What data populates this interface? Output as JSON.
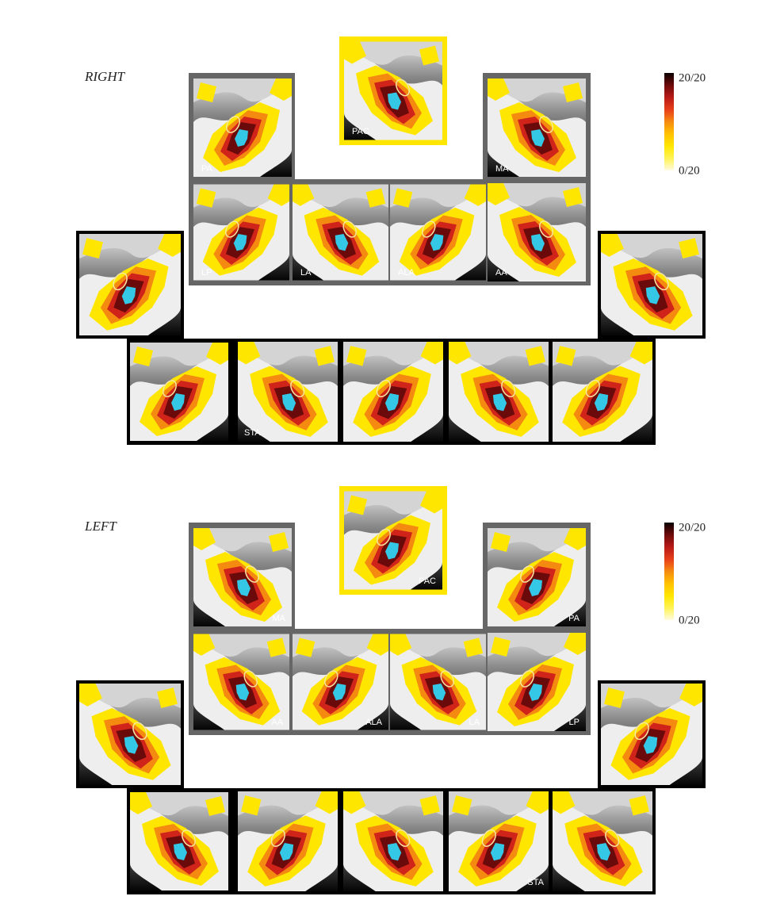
{
  "sections": [
    {
      "label": "RIGHT",
      "colorbar": {
        "max_label": "20/20",
        "min_label": "0/20"
      },
      "panel_labels": [
        "PAC",
        "PA",
        "MA",
        "LP",
        "LA",
        "ALA",
        "AA",
        "STA"
      ]
    },
    {
      "label": "LEFT",
      "colorbar": {
        "max_label": "20/20",
        "min_label": "0/20"
      },
      "panel_labels": [
        "PAC",
        "MA",
        "PA",
        "AA",
        "ALA",
        "LA",
        "LP",
        "STA"
      ]
    }
  ]
}
